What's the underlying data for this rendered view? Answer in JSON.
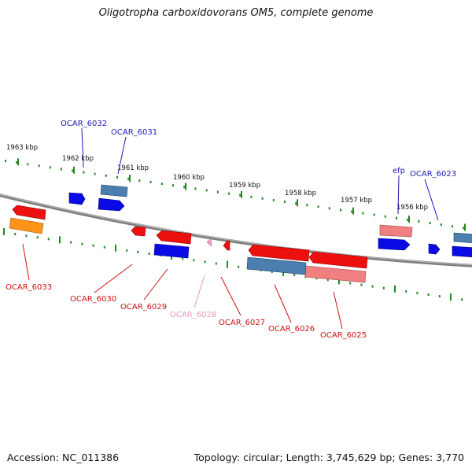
{
  "title": "Oligotropha carboxidovorans OM5, complete genome",
  "footer": {
    "accession": "Accession: NC_011386",
    "topology": "Topology: circular; Length: 3,745,629 bp; Genes: 3,770"
  },
  "colors": {
    "backbone": "#7f7f7f",
    "tick": "#1f8a1f",
    "label_blue": "#1a1ab8",
    "label_red": "#cc1111",
    "label_pink": "#e898b8"
  },
  "kbp_labels": [
    "1963 kbp",
    "1962 kbp",
    "1961 kbp",
    "1960 kbp",
    "1959 kbp",
    "1958 kbp",
    "1957 kbp",
    "1956 kbp"
  ],
  "gene_labels": {
    "OCAR_6032": "OCAR_6032",
    "OCAR_6031": "OCAR_6031",
    "efp": "efp",
    "OCAR_6023": "OCAR_6023",
    "OCAR_6033": "OCAR_6033",
    "OCAR_6030": "OCAR_6030",
    "OCAR_6029": "OCAR_6029",
    "OCAR_6028": "OCAR_6028",
    "OCAR_6027": "OCAR_6027",
    "OCAR_6026": "OCAR_6026",
    "OCAR_6025": "OCAR_6025"
  }
}
